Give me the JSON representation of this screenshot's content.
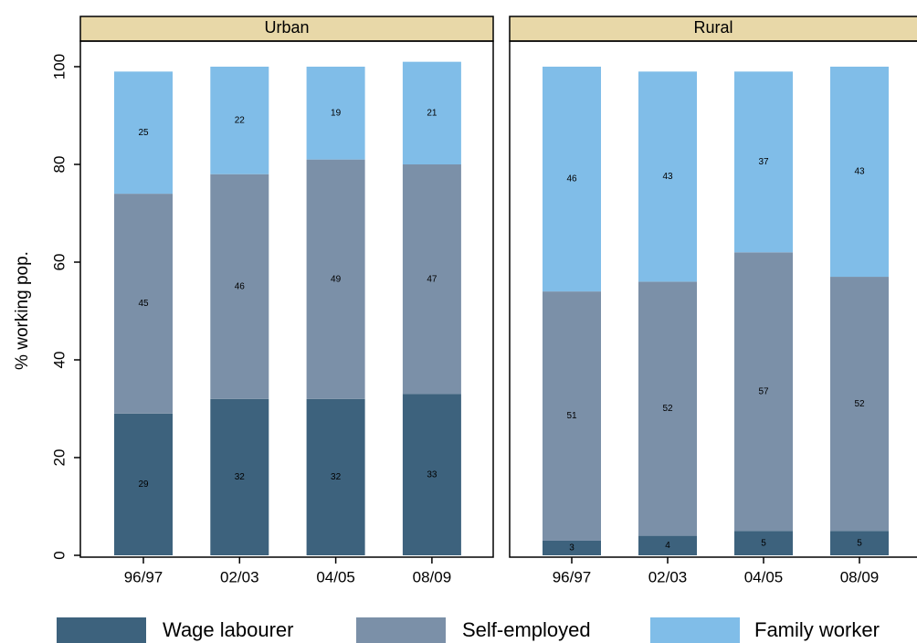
{
  "chart_data": {
    "type": "bar",
    "stacked": true,
    "panels": [
      "Urban",
      "Rural"
    ],
    "ylabel": "% working pop.",
    "categories": [
      "96/97",
      "02/03",
      "04/05",
      "08/09"
    ],
    "ylim": [
      0,
      100
    ],
    "yticks": [
      0,
      20,
      40,
      60,
      80,
      100
    ],
    "series": [
      {
        "name": "Wage labourer",
        "color": "#3d627d",
        "values": [
          [
            29,
            32,
            32,
            33
          ],
          [
            3,
            4,
            5,
            5
          ]
        ]
      },
      {
        "name": "Self-employed",
        "color": "#7b90a8",
        "values": [
          [
            45,
            46,
            49,
            47
          ],
          [
            51,
            52,
            57,
            52
          ]
        ]
      },
      {
        "name": "Family worker",
        "color": "#80bde8",
        "values": [
          [
            25,
            22,
            19,
            21
          ],
          [
            46,
            43,
            37,
            43
          ]
        ]
      }
    ]
  }
}
